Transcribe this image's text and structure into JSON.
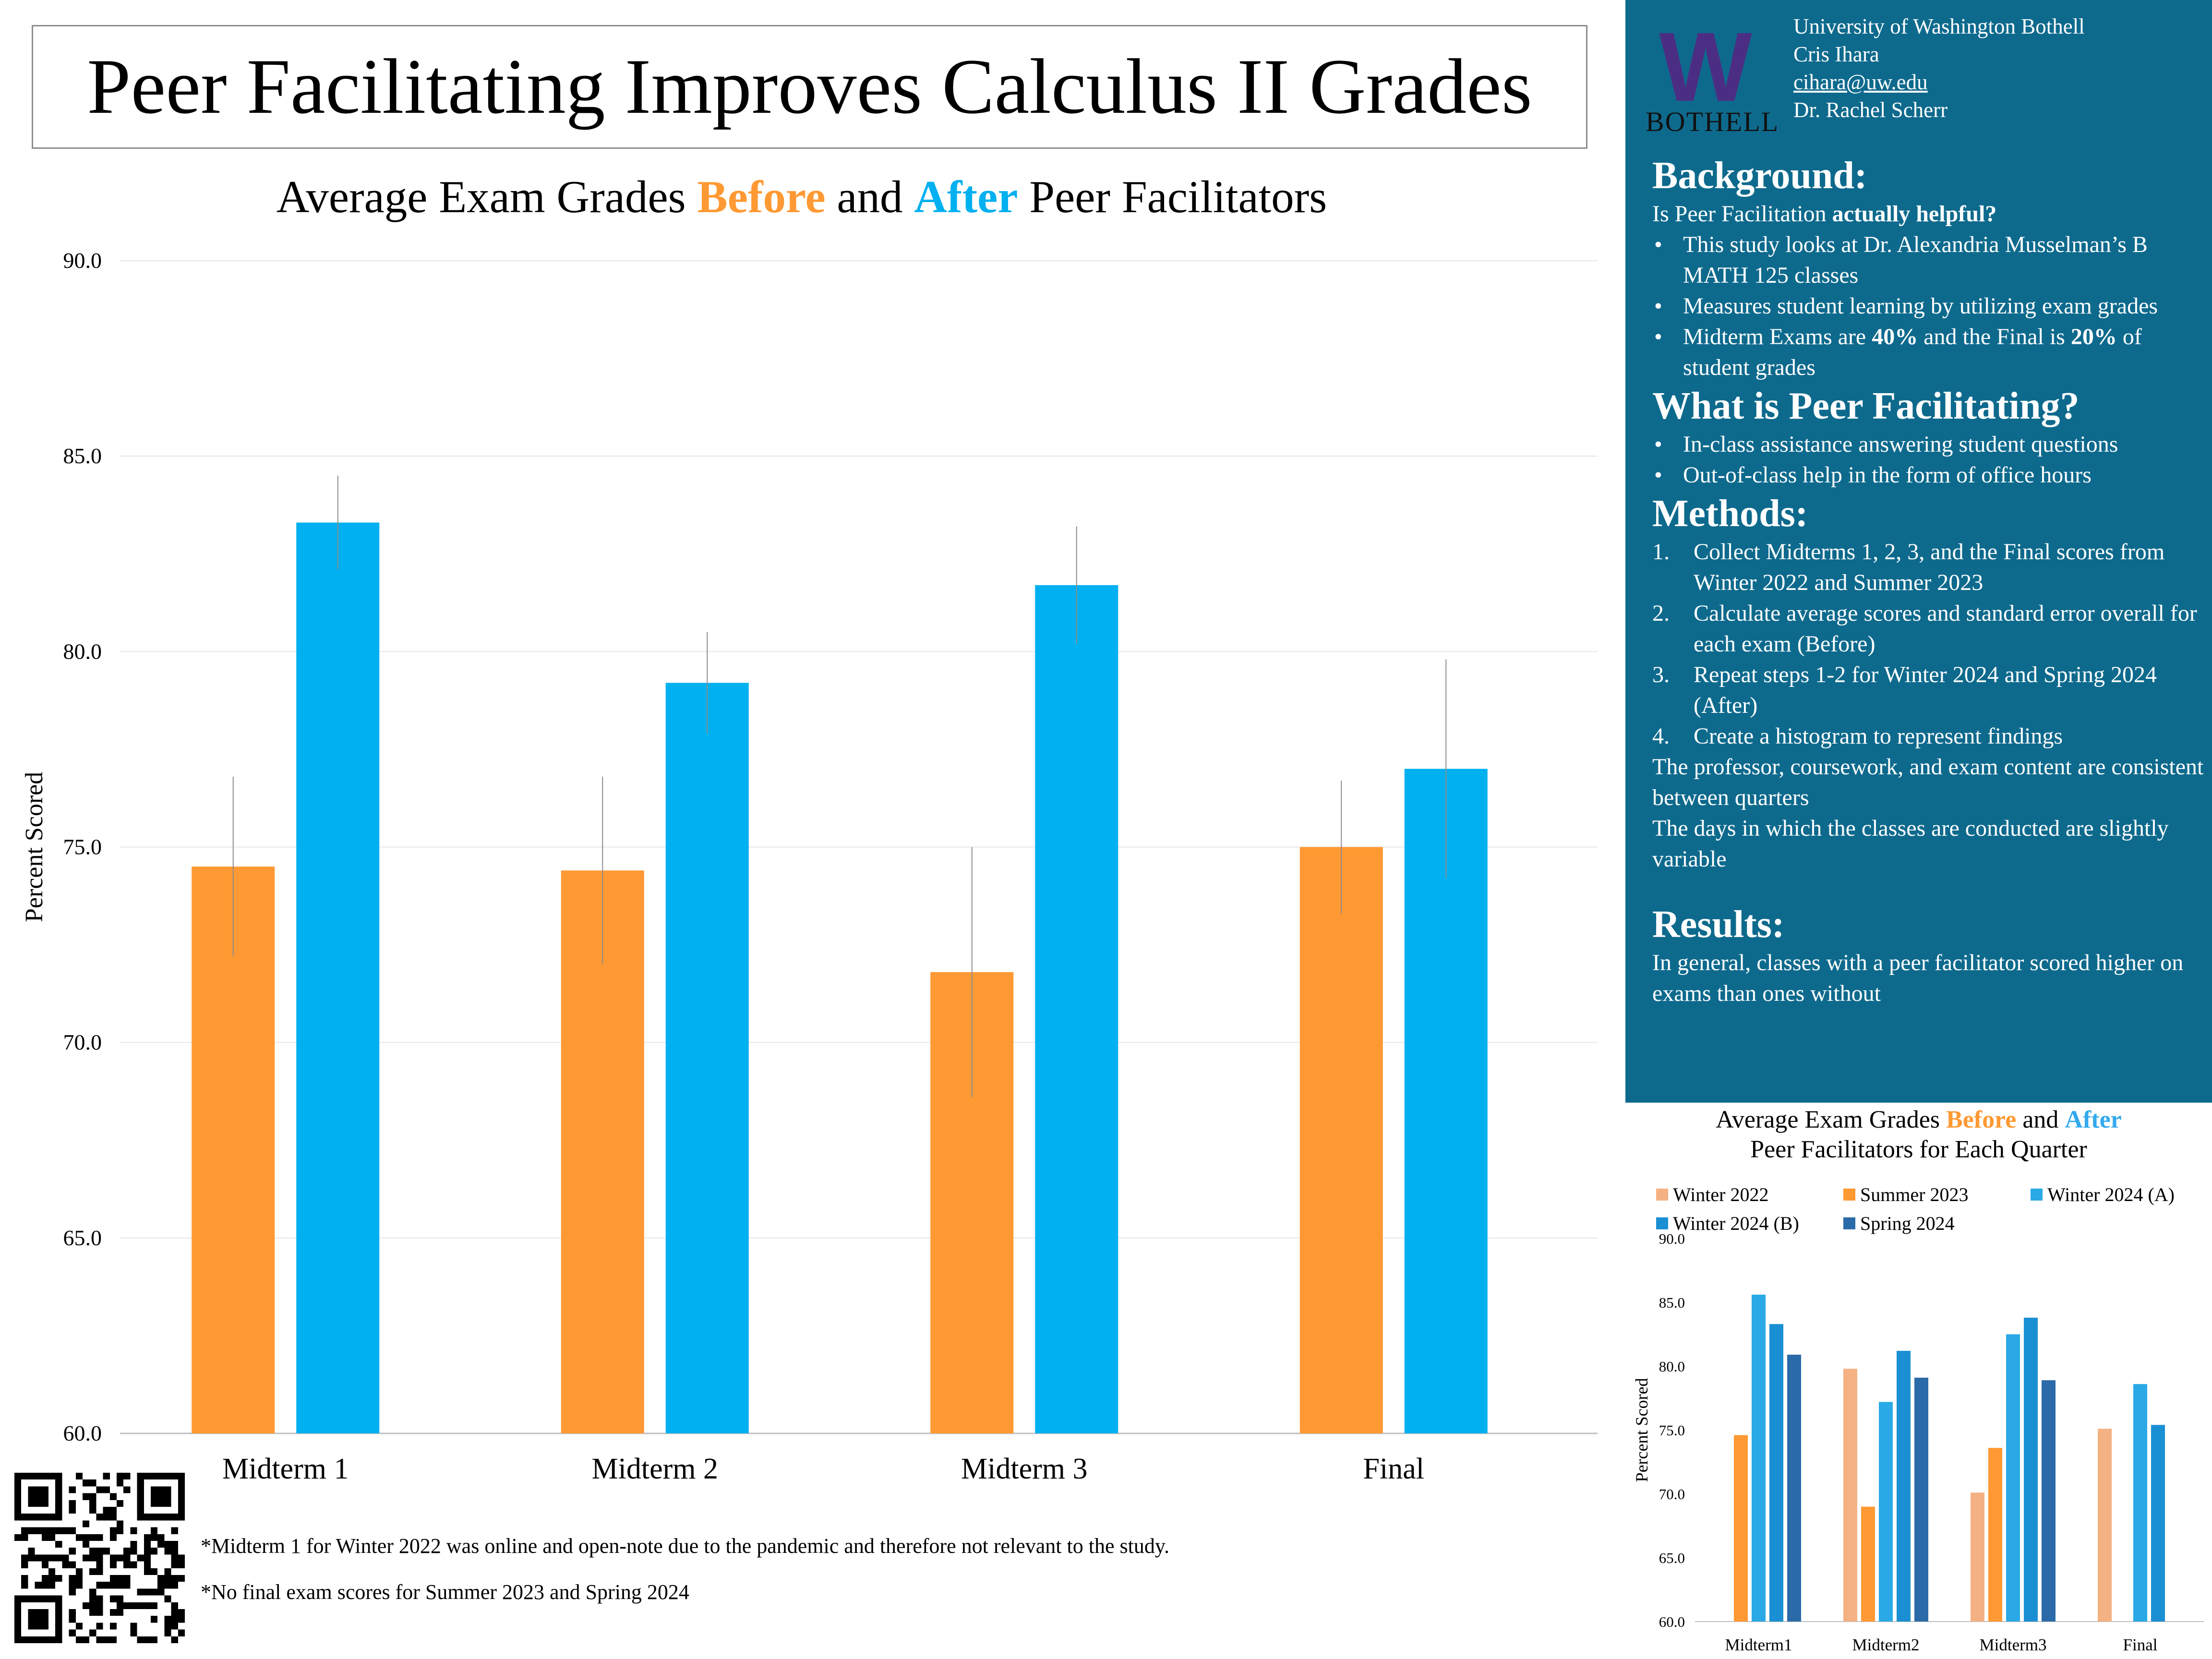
{
  "poster_title": "Peer Facilitating Improves Calculus II Grades",
  "main_chart": {
    "title_parts": [
      "Average Exam Grades ",
      "Before",
      " and ",
      "After",
      " Peer Facilitators"
    ],
    "ylabel": "Percent Scored"
  },
  "footnotes": [
    "*Midterm 1 for Winter 2022 was online and open-note due to the pandemic and therefore not relevant to the study.",
    "*No final exam scores for Summer 2023 and Spring 2024"
  ],
  "logo": {
    "letter": "W",
    "text": "BOTHELL"
  },
  "contact": {
    "university": "University of Washington Bothell",
    "name": "Cris Ihara",
    "email": "cihara@uw.edu",
    "advisor": "Dr. Rachel Scherr"
  },
  "background": {
    "title": "Background:",
    "question_start": "Is Peer Facilitation ",
    "question_bold": "actually helpful?",
    "bullets": [
      "This study looks at Dr. Alexandria Musselman’s B MATH 125 classes",
      "Measures student learning by utilizing exam grades"
    ],
    "bullet3_parts": [
      "Midterm Exams are ",
      "40%",
      " and the Final is ",
      "20%",
      " of student grades"
    ]
  },
  "what_is": {
    "title": "What is Peer Facilitating?",
    "bullets": [
      "In-class assistance answering student questions",
      "Out-of-class help in the form of office hours"
    ]
  },
  "methods": {
    "title": "Methods:",
    "steps": [
      {
        "n": "1.",
        "text": "Collect Midterms 1, 2, 3, and the Final scores from Winter 2022 and Summer 2023"
      },
      {
        "n": "2.",
        "text": "Calculate average scores and standard error overall for each exam (Before)"
      },
      {
        "n": "3.",
        "text": "Repeat steps 1-2 for Winter 2024 and Spring 2024 (After)"
      },
      {
        "n": "4.",
        "text": "Create a histogram to represent findings"
      }
    ],
    "notes": [
      "The professor, coursework, and exam content are consistent between quarters",
      "The days in which the classes are conducted are slightly variable"
    ]
  },
  "results": {
    "title": "Results:",
    "text": "In general, classes with a peer facilitator scored higher on exams than ones without"
  },
  "small_chart": {
    "title_parts": [
      "Average Exam Grades ",
      "Before",
      " and ",
      "After",
      "Peer Facilitators for Each Quarter"
    ],
    "ylabel": "Percent Scored"
  },
  "chart_data": [
    {
      "type": "bar",
      "title": "Average Exam Grades Before and After Peer Facilitators",
      "xlabel": "",
      "ylabel": "Percent Scored",
      "ylim": [
        60,
        90
      ],
      "yticks": [
        "60.0",
        "65.0",
        "70.0",
        "75.0",
        "80.0",
        "85.0",
        "90.0"
      ],
      "categories": [
        "Midterm 1",
        "Midterm 2",
        "Midterm 3",
        "Final"
      ],
      "series": [
        {
          "name": "Before",
          "color": "#ff9933",
          "values": [
            74.5,
            74.4,
            71.8,
            75.0
          ],
          "errors": [
            2.3,
            2.4,
            3.2,
            1.7
          ]
        },
        {
          "name": "After",
          "color": "#00b0f0",
          "values": [
            83.3,
            79.2,
            81.7,
            77.0
          ],
          "errors": [
            1.2,
            1.3,
            1.5,
            2.8
          ]
        }
      ],
      "grid": true,
      "legend": "none"
    },
    {
      "type": "bar",
      "title": "Average Exam Grades Before and After Peer Facilitators for Each Quarter",
      "xlabel": "",
      "ylabel": "Percent Scored",
      "ylim": [
        60,
        90
      ],
      "yticks": [
        "60.0",
        "65.0",
        "70.0",
        "75.0",
        "80.0",
        "85.0",
        "90.0"
      ],
      "categories": [
        "Midterm1",
        "Midterm2",
        "Midterm3",
        "Final"
      ],
      "series": [
        {
          "name": "Winter 2022",
          "color": "#f4b183",
          "values": [
            null,
            79.8,
            70.1,
            75.1
          ]
        },
        {
          "name": "Summer 2023",
          "color": "#ff9933",
          "values": [
            74.6,
            69.0,
            73.6,
            null
          ]
        },
        {
          "name": "Winter 2024 (A)",
          "color": "#2aa9e6",
          "values": [
            85.6,
            77.2,
            82.5,
            78.6
          ]
        },
        {
          "name": "Winter 2024 (B)",
          "color": "#1b8fd4",
          "values": [
            83.3,
            81.2,
            83.8,
            75.4
          ]
        },
        {
          "name": "Spring 2024",
          "color": "#2b6aa8",
          "values": [
            80.9,
            79.1,
            78.9,
            null
          ]
        }
      ],
      "grid": false,
      "legend": "top"
    }
  ]
}
